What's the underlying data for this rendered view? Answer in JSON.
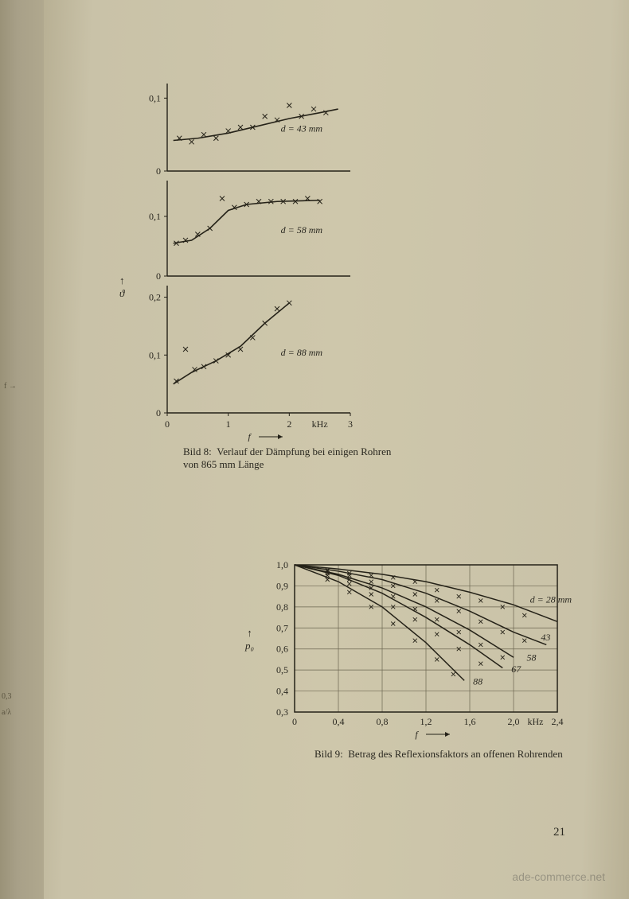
{
  "page_number": "21",
  "watermark": "ade-commerce.net",
  "figure8": {
    "caption_label": "Bild 8:",
    "caption_text": "Verlauf der Dämpfung bei einigen Rohren von 865 mm Länge",
    "y_axis_symbol": "ϑ",
    "x_axis_label": "f",
    "x_unit": "kHz",
    "stroke_color": "#252218",
    "grid_color": "#252218",
    "marker": "x",
    "panels": [
      {
        "d_label": "d = 43 mm",
        "y_ticks": [
          "0",
          "0,1"
        ],
        "ylim": [
          0,
          0.12
        ],
        "points_x": [
          0.2,
          0.4,
          0.6,
          0.8,
          1.0,
          1.2,
          1.4,
          1.6,
          1.8,
          2.0,
          2.2,
          2.4,
          2.6
        ],
        "points_y": [
          0.045,
          0.04,
          0.05,
          0.045,
          0.055,
          0.06,
          0.06,
          0.075,
          0.07,
          0.09,
          0.075,
          0.085,
          0.08
        ],
        "curve_x": [
          0.1,
          0.5,
          1.0,
          1.5,
          2.0,
          2.5,
          2.8
        ],
        "curve_y": [
          0.042,
          0.045,
          0.052,
          0.062,
          0.072,
          0.08,
          0.085
        ]
      },
      {
        "d_label": "d = 58 mm",
        "y_ticks": [
          "0",
          "0,1"
        ],
        "ylim": [
          0,
          0.16
        ],
        "points_x": [
          0.15,
          0.3,
          0.5,
          0.7,
          0.9,
          1.1,
          1.3,
          1.5,
          1.7,
          1.9,
          2.1,
          2.3,
          2.5
        ],
        "points_y": [
          0.055,
          0.06,
          0.07,
          0.08,
          0.13,
          0.115,
          0.12,
          0.125,
          0.125,
          0.125,
          0.125,
          0.13,
          0.125
        ],
        "curve_x": [
          0.1,
          0.4,
          0.7,
          1.0,
          1.3,
          1.8,
          2.5
        ],
        "curve_y": [
          0.055,
          0.06,
          0.08,
          0.11,
          0.12,
          0.125,
          0.127
        ]
      },
      {
        "d_label": "d = 88 mm",
        "y_ticks": [
          "0",
          "0,1",
          "0,2"
        ],
        "ylim": [
          0,
          0.22
        ],
        "points_x": [
          0.15,
          0.3,
          0.45,
          0.6,
          0.8,
          1.0,
          1.2,
          1.4,
          1.6,
          1.8,
          2.0
        ],
        "points_y": [
          0.055,
          0.11,
          0.075,
          0.08,
          0.09,
          0.1,
          0.11,
          0.13,
          0.155,
          0.18,
          0.19
        ],
        "curve_x": [
          0.1,
          0.4,
          0.8,
          1.2,
          1.6,
          2.0
        ],
        "curve_y": [
          0.05,
          0.07,
          0.09,
          0.115,
          0.155,
          0.19
        ]
      }
    ],
    "x_ticks": [
      "0",
      "1",
      "2",
      "3"
    ],
    "xlim": [
      0,
      3
    ]
  },
  "figure9": {
    "caption_label": "Bild 9:",
    "caption_text": "Betrag des Reflexionsfaktors an offenen Rohrenden",
    "y_axis_label": "p₀",
    "x_axis_label": "f",
    "x_unit": "kHz",
    "stroke_color": "#252218",
    "grid_color": "#6b6550",
    "marker": "x",
    "ylim": [
      0.3,
      1.0
    ],
    "xlim": [
      0,
      2.4
    ],
    "y_ticks": [
      "0,3",
      "0,4",
      "0,5",
      "0,6",
      "0,7",
      "0,8",
      "0,9",
      "1,0"
    ],
    "x_ticks": [
      "0",
      "0,4",
      "0,8",
      "1,2",
      "1,6",
      "2,0",
      "2,4"
    ],
    "curves": [
      {
        "label": "d = 28 mm",
        "label_x": 2.15,
        "label_y": 0.82,
        "x": [
          0,
          0.4,
          0.8,
          1.2,
          1.6,
          2.0,
          2.4
        ],
        "y": [
          1.0,
          0.98,
          0.955,
          0.92,
          0.87,
          0.81,
          0.73
        ]
      },
      {
        "label": "43",
        "label_x": 2.25,
        "label_y": 0.64,
        "x": [
          0,
          0.4,
          0.8,
          1.2,
          1.6,
          2.0,
          2.3
        ],
        "y": [
          1.0,
          0.97,
          0.93,
          0.865,
          0.78,
          0.68,
          0.62
        ]
      },
      {
        "label": "58",
        "label_x": 2.12,
        "label_y": 0.545,
        "x": [
          0,
          0.4,
          0.8,
          1.2,
          1.6,
          2.0
        ],
        "y": [
          1.0,
          0.955,
          0.89,
          0.8,
          0.69,
          0.56
        ]
      },
      {
        "label": "67",
        "label_x": 1.98,
        "label_y": 0.49,
        "x": [
          0,
          0.4,
          0.8,
          1.2,
          1.6,
          1.9
        ],
        "y": [
          1.0,
          0.95,
          0.865,
          0.75,
          0.62,
          0.51
        ]
      },
      {
        "label": "88",
        "label_x": 1.63,
        "label_y": 0.43,
        "x": [
          0,
          0.4,
          0.8,
          1.2,
          1.55
        ],
        "y": [
          1.0,
          0.92,
          0.8,
          0.63,
          0.45
        ]
      }
    ],
    "scatter": [
      [
        0.3,
        0.975
      ],
      [
        0.5,
        0.96
      ],
      [
        0.7,
        0.95
      ],
      [
        0.9,
        0.94
      ],
      [
        1.1,
        0.92
      ],
      [
        1.3,
        0.88
      ],
      [
        1.5,
        0.85
      ],
      [
        1.7,
        0.83
      ],
      [
        1.9,
        0.8
      ],
      [
        2.1,
        0.76
      ],
      [
        0.3,
        0.97
      ],
      [
        0.5,
        0.95
      ],
      [
        0.7,
        0.92
      ],
      [
        0.9,
        0.9
      ],
      [
        1.1,
        0.86
      ],
      [
        1.3,
        0.83
      ],
      [
        1.5,
        0.78
      ],
      [
        1.7,
        0.73
      ],
      [
        1.9,
        0.68
      ],
      [
        2.1,
        0.64
      ],
      [
        0.3,
        0.96
      ],
      [
        0.5,
        0.93
      ],
      [
        0.7,
        0.89
      ],
      [
        0.9,
        0.85
      ],
      [
        1.1,
        0.79
      ],
      [
        1.3,
        0.74
      ],
      [
        1.5,
        0.68
      ],
      [
        1.7,
        0.62
      ],
      [
        1.9,
        0.56
      ],
      [
        0.3,
        0.95
      ],
      [
        0.5,
        0.91
      ],
      [
        0.7,
        0.86
      ],
      [
        0.9,
        0.8
      ],
      [
        1.1,
        0.74
      ],
      [
        1.3,
        0.67
      ],
      [
        1.5,
        0.6
      ],
      [
        1.7,
        0.53
      ],
      [
        0.3,
        0.93
      ],
      [
        0.5,
        0.87
      ],
      [
        0.7,
        0.8
      ],
      [
        0.9,
        0.72
      ],
      [
        1.1,
        0.64
      ],
      [
        1.3,
        0.55
      ],
      [
        1.45,
        0.48
      ]
    ]
  },
  "left_peek": {
    "items": [
      "f →",
      "0,3",
      "a/λ"
    ]
  }
}
